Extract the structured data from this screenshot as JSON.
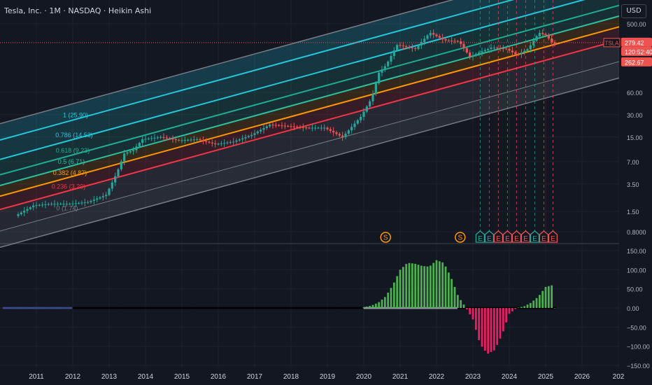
{
  "header": {
    "title": "Tesla, Inc. · 1M · NASDAQ · Heikin Ashi",
    "currency": "USD"
  },
  "colors": {
    "background": "#131722",
    "up": "#26a69a",
    "down": "#ef5350",
    "price_line": "#ef5350",
    "channel_border": "#787b86",
    "fib_1": "#26c6da",
    "fib_0786": "#26c6da",
    "fib_0618": "#22ab94",
    "fib_05": "#2ebfa0",
    "fib_0382": "#ff9800",
    "fib_0236": "#f23645",
    "fib_0": "#787b86",
    "osc_up": "#4caf50",
    "osc_down": "#e91e63"
  },
  "chart_data": [
    {
      "type": "candlestick",
      "symbol": "TSLA",
      "scale": "log",
      "y_ticks": [
        "500.00",
        "60.00",
        "30.00",
        "15.00",
        "7.00",
        "3.50",
        "1.50",
        "0.8000"
      ],
      "y_tick_values": [
        500,
        60,
        30,
        15,
        7,
        3.5,
        1.5,
        0.8
      ],
      "x_ticks": [
        "2011",
        "2012",
        "2013",
        "2014",
        "2015",
        "2016",
        "2017",
        "2018",
        "2019",
        "2020",
        "2021",
        "2022",
        "2023",
        "2024",
        "2025",
        "2026",
        "202"
      ],
      "price_labels": [
        {
          "text": "279.42",
          "kind": "last"
        },
        {
          "text": "TSLA",
          "kind": "symbol"
        },
        {
          "text": "120:52:40",
          "kind": "countdown"
        },
        {
          "text": "262.67",
          "kind": "ha_close"
        }
      ],
      "fib_channel_levels": [
        {
          "level": 1,
          "label": "1 (25.90)"
        },
        {
          "level": 0.786,
          "label": "0.786 (14.53)"
        },
        {
          "level": 0.618,
          "label": "0.618 (9.23)"
        },
        {
          "level": 0.5,
          "label": "0.5 (6.71)"
        },
        {
          "level": 0.382,
          "label": "0.382 (4.87)"
        },
        {
          "level": 0.236,
          "label": "0.236 (3.29)"
        },
        {
          "level": 0,
          "label": "0 (1.74)"
        }
      ],
      "series": [
        {
          "name": "TSLA",
          "x": [
            2010.5,
            2011.0,
            2011.5,
            2012.0,
            2012.5,
            2013.0,
            2013.3,
            2013.5,
            2013.75,
            2014.0,
            2014.5,
            2015.0,
            2015.5,
            2016.0,
            2016.5,
            2017.0,
            2017.5,
            2018.0,
            2018.5,
            2019.0,
            2019.5,
            2020.0,
            2020.3,
            2020.5,
            2020.7,
            2021.0,
            2021.5,
            2021.9,
            2022.3,
            2022.7,
            2023.0,
            2023.3,
            2023.6,
            2024.0,
            2024.3,
            2024.6,
            2024.9,
            2025.1,
            2025.3
          ],
          "close": [
            1.3,
            1.8,
            1.9,
            1.9,
            2.0,
            2.5,
            5,
            9,
            10,
            14,
            15,
            13.5,
            14,
            12,
            13,
            16,
            22,
            21,
            20,
            20,
            15,
            28,
            50,
            110,
            140,
            260,
            230,
            380,
            300,
            290,
            180,
            210,
            240,
            230,
            190,
            230,
            380,
            350,
            262.67
          ]
        }
      ],
      "markers": [
        {
          "x": 2020.6,
          "label": "S",
          "kind": "split"
        },
        {
          "x": 2022.65,
          "label": "S",
          "kind": "split"
        },
        {
          "x": 2023.2,
          "label": "E",
          "kind": "earnings",
          "result": "up"
        },
        {
          "x": 2023.45,
          "label": "E",
          "kind": "earnings",
          "result": "up"
        },
        {
          "x": 2023.7,
          "label": "E",
          "kind": "earnings",
          "result": "down"
        },
        {
          "x": 2023.95,
          "label": "E",
          "kind": "earnings",
          "result": "down"
        },
        {
          "x": 2024.2,
          "label": "E",
          "kind": "earnings",
          "result": "down"
        },
        {
          "x": 2024.45,
          "label": "E",
          "kind": "earnings",
          "result": "down"
        },
        {
          "x": 2024.7,
          "label": "E",
          "kind": "earnings",
          "result": "up"
        },
        {
          "x": 2024.95,
          "label": "E",
          "kind": "earnings",
          "result": "down"
        },
        {
          "x": 2025.2,
          "label": "E",
          "kind": "earnings",
          "result": "down"
        }
      ]
    },
    {
      "type": "bar",
      "role": "oscillator",
      "y_ticks": [
        "150.00",
        "100.00",
        "50.00",
        "0.00",
        "−50.00",
        "−100.00",
        "−150.00"
      ],
      "y_tick_values": [
        150,
        100,
        50,
        0,
        -50,
        -100,
        -150
      ],
      "ylim": [
        -150,
        150
      ],
      "series": [
        {
          "name": "",
          "x": [
            2020.0,
            2020.2,
            2020.4,
            2020.6,
            2020.8,
            2021.0,
            2021.2,
            2021.4,
            2021.6,
            2021.8,
            2022.0,
            2022.2,
            2022.4,
            2022.6,
            2022.8,
            2023.0,
            2023.2,
            2023.4,
            2023.6,
            2023.8,
            2024.0,
            2024.2,
            2024.4,
            2024.6,
            2024.8,
            2025.0,
            2025.2
          ],
          "values": [
            2,
            6,
            14,
            30,
            60,
            100,
            118,
            116,
            110,
            108,
            125,
            118,
            80,
            30,
            2,
            -30,
            -95,
            -120,
            -110,
            -70,
            -15,
            0,
            4,
            14,
            30,
            55,
            60
          ]
        }
      ]
    }
  ]
}
